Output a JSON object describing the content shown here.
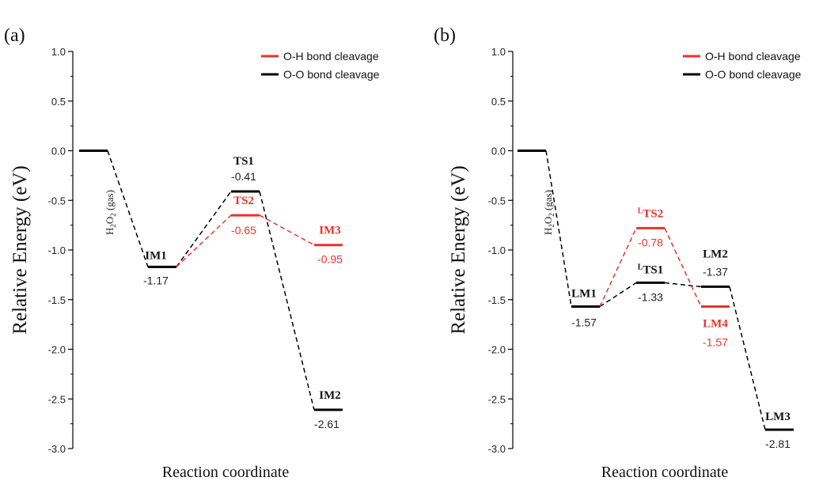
{
  "chart_data": [
    {
      "type": "energy-profile",
      "panel_label": "(a)",
      "ylabel": "Relative Energy (eV)",
      "xlabel": "Reaction coordinate",
      "ylim": [
        -3.0,
        1.0
      ],
      "yticks": [
        1.0,
        0.5,
        0.0,
        -0.5,
        -1.0,
        -1.5,
        -2.0,
        -2.5,
        -3.0
      ],
      "ytick_labels": [
        "1.0",
        "0.5",
        "0.0",
        "-0.5",
        "-1.0",
        "-1.5",
        "-2.0",
        "-2.5",
        "-3.0"
      ],
      "legend_position": "top-right",
      "legend": [
        {
          "label": "O-H bond cleavage",
          "color": "#e8332a"
        },
        {
          "label": "O-O bond cleavage",
          "color": "#000000"
        }
      ],
      "levels": [
        {
          "id": "h2o2",
          "name": "H2O2 (gas)",
          "energy": 0.0,
          "position": 0,
          "color": "#000000"
        },
        {
          "id": "IM1",
          "name": "IM1",
          "energy": -1.17,
          "value_label": "-1.17",
          "position": 1,
          "color": "#000000"
        },
        {
          "id": "TS1",
          "name": "TS1",
          "energy": -0.41,
          "value_label": "-0.41",
          "position": 2,
          "color": "#000000"
        },
        {
          "id": "TS2",
          "name": "TS2",
          "energy": -0.65,
          "value_label": "-0.65",
          "position": 2,
          "color": "#e8332a"
        },
        {
          "id": "IM3",
          "name": "IM3",
          "energy": -0.95,
          "value_label": "-0.95",
          "position": 3,
          "color": "#e8332a"
        },
        {
          "id": "IM2",
          "name": "IM2",
          "energy": -2.61,
          "value_label": "-2.61",
          "position": 3,
          "color": "#000000"
        }
      ],
      "paths": [
        {
          "from": "h2o2",
          "to": "IM1",
          "color": "#000000"
        },
        {
          "from": "IM1",
          "to": "TS1",
          "color": "#000000"
        },
        {
          "from": "TS1",
          "to": "IM2",
          "color": "#000000"
        },
        {
          "from": "IM1",
          "to": "TS2",
          "color": "#e8332a"
        },
        {
          "from": "TS2",
          "to": "IM3",
          "color": "#e8332a"
        }
      ]
    },
    {
      "type": "energy-profile",
      "panel_label": "(b)",
      "ylabel": "Relative Energy (eV)",
      "xlabel": "Reaction coordinate",
      "ylim": [
        -3.0,
        1.0
      ],
      "yticks": [
        1.0,
        0.5,
        0.0,
        -0.5,
        -1.0,
        -1.5,
        -2.0,
        -2.5,
        -3.0
      ],
      "ytick_labels": [
        "1.0",
        "0.5",
        "0.0",
        "-0.5",
        "-1.0",
        "-1.5",
        "-2.0",
        "-2.5",
        "-3.0"
      ],
      "legend_position": "top-right",
      "legend": [
        {
          "label": "O-H bond cleavage",
          "color": "#e8332a"
        },
        {
          "label": "O-O bond cleavage",
          "color": "#000000"
        }
      ],
      "levels": [
        {
          "id": "h2o2",
          "name": "H2O2 (gas)",
          "energy": 0.0,
          "position": 0,
          "color": "#000000"
        },
        {
          "id": "LM1",
          "name": "LM1",
          "energy": -1.57,
          "value_label": "-1.57",
          "position": 1,
          "color": "#000000"
        },
        {
          "id": "LTS2",
          "name": "LTS2",
          "energy": -0.78,
          "value_label": "-0.78",
          "position": 2,
          "color": "#e8332a"
        },
        {
          "id": "LTS1",
          "name": "LTS1",
          "energy": -1.33,
          "value_label": "-1.33",
          "position": 2,
          "color": "#000000"
        },
        {
          "id": "LM2",
          "name": "LM2",
          "energy": -1.37,
          "value_label": "-1.37",
          "position": 3,
          "color": "#000000"
        },
        {
          "id": "LM4",
          "name": "LM4",
          "energy": -1.57,
          "value_label": "-1.57",
          "position": 3,
          "color": "#e8332a"
        },
        {
          "id": "LM3",
          "name": "LM3",
          "energy": -2.81,
          "value_label": "-2.81",
          "position": 4,
          "color": "#000000"
        }
      ],
      "paths": [
        {
          "from": "h2o2",
          "to": "LM1",
          "color": "#000000"
        },
        {
          "from": "LM1",
          "to": "LTS1",
          "color": "#000000"
        },
        {
          "from": "LTS1",
          "to": "LM2",
          "color": "#000000"
        },
        {
          "from": "LM2",
          "to": "LM3",
          "color": "#000000"
        },
        {
          "from": "LM1",
          "to": "LTS2",
          "color": "#e8332a"
        },
        {
          "from": "LTS2",
          "to": "LM4",
          "color": "#e8332a"
        }
      ]
    }
  ]
}
